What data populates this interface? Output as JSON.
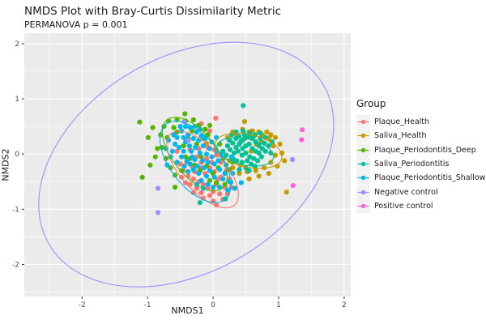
{
  "chart_data": {
    "type": "scatter",
    "title": "NMDS Plot with Bray-Curtis Dissimilarity Metric",
    "subtitle": "PERMANOVA p = 0.001",
    "xlabel": "NMDS1",
    "ylabel": "NMDS2",
    "xlim": [
      -2.88,
      2.1
    ],
    "ylim": [
      -2.58,
      2.19
    ],
    "x_ticks": [
      -2,
      -1,
      0,
      1,
      2
    ],
    "y_ticks": [
      -2,
      -1,
      0,
      1,
      2
    ],
    "x_minor_ticks": [
      -2.5,
      -1.5,
      -0.5,
      0.5,
      1.5
    ],
    "y_minor_ticks": [
      -2.5,
      -1.5,
      -0.5,
      0.5,
      1.5
    ],
    "grid": "on",
    "panel_background": "#EBEBEB",
    "gridline_color": "#FFFFFF",
    "tick_label_color": "#4D4D4D",
    "legend_title": "Group",
    "legend_position": "right",
    "legend_key_fill": "#F2F2F2",
    "series": [
      {
        "name": "Plaque_Health",
        "color": "#F8766D",
        "ellipse": {
          "cx": -0.16,
          "cy": -0.28,
          "rx": 0.73,
          "ry": 0.33,
          "angle": 48
        },
        "points": [
          [
            -0.45,
            -0.3
          ],
          [
            -0.38,
            -0.4
          ],
          [
            -0.3,
            -0.45
          ],
          [
            -0.22,
            -0.5
          ],
          [
            -0.15,
            -0.55
          ],
          [
            -0.08,
            -0.62
          ],
          [
            0.0,
            -0.68
          ],
          [
            0.1,
            -0.72
          ],
          [
            -0.25,
            -0.62
          ],
          [
            -0.35,
            -0.55
          ],
          [
            -0.18,
            -0.7
          ],
          [
            -0.05,
            -0.75
          ],
          [
            0.05,
            -0.55
          ],
          [
            0.12,
            -0.42
          ],
          [
            0.18,
            -0.6
          ],
          [
            0.22,
            -0.72
          ],
          [
            -0.12,
            -0.35
          ],
          [
            -0.2,
            -0.25
          ],
          [
            -0.28,
            -0.32
          ],
          [
            -0.05,
            -0.25
          ],
          [
            0.02,
            -0.32
          ],
          [
            0.08,
            -0.45
          ],
          [
            -0.4,
            -0.15
          ],
          [
            -0.32,
            -0.22
          ],
          [
            -0.48,
            -0.42
          ],
          [
            -0.42,
            -0.52
          ],
          [
            -0.3,
            -0.7
          ],
          [
            -0.15,
            -0.8
          ],
          [
            0.0,
            -0.85
          ],
          [
            0.15,
            -0.82
          ],
          [
            -0.5,
            -0.18
          ],
          [
            -0.25,
            -0.05
          ],
          [
            -0.18,
            -0.15
          ],
          [
            -0.1,
            -0.08
          ],
          [
            -0.02,
            -0.15
          ],
          [
            0.05,
            -0.02
          ],
          [
            0.12,
            -0.15
          ],
          [
            0.2,
            -0.3
          ],
          [
            0.25,
            -0.45
          ],
          [
            0.28,
            -0.6
          ],
          [
            -0.35,
            0.08
          ],
          [
            -0.22,
            0.1
          ],
          [
            -0.08,
            0.12
          ],
          [
            0.02,
            0.08
          ],
          [
            -0.55,
            0.05
          ],
          [
            -0.05,
            0.42
          ],
          [
            -0.18,
            0.55
          ],
          [
            0.05,
            -0.92
          ],
          [
            0.04,
            0.65
          ]
        ]
      },
      {
        "name": "Saliva_Health",
        "color": "#C49A00",
        "ellipse": {
          "cx": 0.54,
          "cy": 0.06,
          "rx": 0.52,
          "ry": 0.25,
          "angle": 13
        },
        "points": [
          [
            0.3,
            0.4
          ],
          [
            0.45,
            0.45
          ],
          [
            0.6,
            0.42
          ],
          [
            0.75,
            0.35
          ],
          [
            0.85,
            0.28
          ],
          [
            0.92,
            0.15
          ],
          [
            0.95,
            -0.02
          ],
          [
            0.88,
            -0.15
          ],
          [
            0.78,
            -0.25
          ],
          [
            0.65,
            -0.3
          ],
          [
            0.52,
            -0.32
          ],
          [
            0.4,
            -0.35
          ],
          [
            0.3,
            -0.25
          ],
          [
            0.25,
            -0.12
          ],
          [
            0.22,
            0.3
          ],
          [
            0.35,
            0.35
          ],
          [
            0.55,
            0.4
          ],
          [
            0.7,
            0.4
          ],
          [
            0.82,
            0.4
          ],
          [
            0.95,
            0.3
          ],
          [
            1.02,
            0.18
          ],
          [
            1.05,
            0.02
          ],
          [
            0.98,
            -0.22
          ],
          [
            0.85,
            -0.35
          ],
          [
            0.7,
            -0.4
          ],
          [
            0.55,
            -0.45
          ],
          [
            0.42,
            -0.2
          ],
          [
            0.48,
            0.28
          ],
          [
            0.62,
            0.32
          ],
          [
            0.58,
            0.05
          ],
          [
            0.66,
            0.18
          ],
          [
            0.74,
            0.22
          ],
          [
            0.88,
            0.35
          ],
          [
            1.09,
            -0.12
          ],
          [
            1.12,
            -0.69
          ],
          [
            0.48,
            0.59
          ],
          [
            -0.1,
            0.19
          ]
        ]
      },
      {
        "name": "Plaque_Periodontitis_Deep",
        "color": "#53B400",
        "ellipse": {
          "cx": -0.28,
          "cy": 0.0,
          "rx": 0.67,
          "ry": 0.33,
          "angle": 51
        },
        "points": [
          [
            -1.12,
            0.58
          ],
          [
            -0.99,
            0.3
          ],
          [
            -1.08,
            -0.42
          ],
          [
            -0.96,
            -0.2
          ],
          [
            -0.85,
            0.1
          ],
          [
            -0.8,
            0.35
          ],
          [
            -0.75,
            0.5
          ],
          [
            -0.68,
            0.6
          ],
          [
            -0.55,
            0.62
          ],
          [
            -0.42,
            0.6
          ],
          [
            -0.3,
            0.62
          ],
          [
            -0.6,
            0.48
          ],
          [
            -0.7,
            0.3
          ],
          [
            -0.78,
            0.12
          ],
          [
            -0.72,
            -0.08
          ],
          [
            -0.65,
            -0.25
          ],
          [
            -0.58,
            -0.38
          ],
          [
            -0.48,
            -0.3
          ],
          [
            -0.55,
            0.4
          ],
          [
            -0.45,
            0.15
          ],
          [
            -0.38,
            0.28
          ],
          [
            -0.32,
            0.42
          ],
          [
            -0.22,
            0.52
          ],
          [
            -0.12,
            0.45
          ],
          [
            -0.35,
            -0.08
          ],
          [
            -0.28,
            -0.2
          ],
          [
            -0.42,
            -0.05
          ],
          [
            -0.18,
            -0.05
          ],
          [
            -0.08,
            0.35
          ],
          [
            -0.05,
            0.52
          ],
          [
            -0.15,
            0.3
          ],
          [
            -0.25,
            0.18
          ],
          [
            -0.2,
            -0.3
          ],
          [
            -0.1,
            -0.22
          ],
          [
            0.0,
            -0.35
          ],
          [
            -0.05,
            -0.48
          ],
          [
            0.08,
            -0.25
          ],
          [
            0.15,
            -0.08
          ],
          [
            0.1,
            0.18
          ],
          [
            0.05,
            -0.52
          ],
          [
            0.18,
            -0.55
          ],
          [
            0.25,
            -0.28
          ],
          [
            -0.88,
            -0.05
          ],
          [
            -0.92,
            0.48
          ],
          [
            0.3,
            -0.15
          ],
          [
            -0.58,
            -0.6
          ],
          [
            -0.43,
            0.73
          ]
        ]
      },
      {
        "name": "Saliva_Periodontitis",
        "color": "#00C094",
        "ellipse": {
          "cx": 0.49,
          "cy": 0.04,
          "rx": 0.44,
          "ry": 0.2,
          "angle": 12
        },
        "points": [
          [
            0.3,
            0.2
          ],
          [
            0.35,
            0.28
          ],
          [
            0.4,
            0.32
          ],
          [
            0.45,
            0.25
          ],
          [
            0.5,
            0.3
          ],
          [
            0.55,
            0.32
          ],
          [
            0.6,
            0.28
          ],
          [
            0.65,
            0.22
          ],
          [
            0.7,
            0.15
          ],
          [
            0.72,
            0.28
          ],
          [
            0.35,
            0.12
          ],
          [
            0.4,
            0.18
          ],
          [
            0.45,
            0.1
          ],
          [
            0.5,
            0.15
          ],
          [
            0.55,
            0.18
          ],
          [
            0.6,
            0.1
          ],
          [
            0.65,
            0.05
          ],
          [
            0.7,
            0.02
          ],
          [
            0.75,
            0.1
          ],
          [
            0.78,
            0.2
          ],
          [
            0.32,
            0.02
          ],
          [
            0.38,
            0.05
          ],
          [
            0.44,
            -0.02
          ],
          [
            0.5,
            0.02
          ],
          [
            0.56,
            -0.05
          ],
          [
            0.62,
            -0.08
          ],
          [
            0.68,
            -0.12
          ],
          [
            0.74,
            -0.05
          ],
          [
            0.8,
            0.05
          ],
          [
            0.42,
            0.22
          ],
          [
            0.36,
            -0.12
          ],
          [
            0.44,
            -0.15
          ],
          [
            0.52,
            -0.12
          ],
          [
            0.58,
            -0.18
          ],
          [
            0.64,
            -0.22
          ],
          [
            0.48,
            0.35
          ],
          [
            0.56,
            0.38
          ],
          [
            0.64,
            0.35
          ],
          [
            0.3,
            -0.08
          ],
          [
            0.26,
            0.08
          ],
          [
            0.25,
            0.25
          ],
          [
            0.85,
            0.15
          ],
          [
            0.88,
            0.02
          ],
          [
            0.35,
            0.4
          ],
          [
            0.28,
            0.35
          ],
          [
            0.72,
            0.38
          ],
          [
            0.8,
            0.3
          ],
          [
            0.5,
            -0.25
          ],
          [
            0.4,
            -0.28
          ],
          [
            0.22,
            0.15
          ],
          [
            0.2,
            -0.02
          ],
          [
            0.9,
            0.22
          ],
          [
            0.46,
            0.42
          ],
          [
            0.15,
            0.05
          ],
          [
            0.55,
            -0.3
          ],
          [
            0.46,
            0.88
          ],
          [
            0.27,
            -0.51
          ],
          [
            0.19,
            -0.81
          ],
          [
            -0.2,
            -0.88
          ]
        ]
      },
      {
        "name": "Plaque_Periodontitis_Shallow",
        "color": "#00B6EB",
        "ellipse": {
          "cx": -0.27,
          "cy": -0.14,
          "rx": 0.73,
          "ry": 0.38,
          "angle": 52
        },
        "points": [
          [
            -0.55,
            0.3
          ],
          [
            -0.48,
            0.42
          ],
          [
            -0.42,
            0.22
          ],
          [
            -0.38,
            0.35
          ],
          [
            -0.52,
            0.12
          ],
          [
            -0.45,
            0.05
          ],
          [
            -0.36,
            0.15
          ],
          [
            -0.3,
            0.28
          ],
          [
            -0.25,
            0.4
          ],
          [
            -0.33,
            0.05
          ],
          [
            -0.48,
            -0.05
          ],
          [
            -0.4,
            -0.12
          ],
          [
            -0.32,
            -0.05
          ],
          [
            -0.27,
            0.12
          ],
          [
            -0.22,
            0.25
          ],
          [
            -0.18,
            0.33
          ],
          [
            -0.58,
            0.18
          ],
          [
            -0.62,
            0.05
          ],
          [
            -0.55,
            -0.15
          ],
          [
            -0.44,
            -0.22
          ],
          [
            -0.35,
            -0.18
          ],
          [
            -0.28,
            -0.1
          ],
          [
            -0.2,
            0.02
          ],
          [
            -0.15,
            0.15
          ],
          [
            -0.12,
            0.28
          ],
          [
            -0.24,
            -0.22
          ],
          [
            -0.16,
            -0.12
          ],
          [
            -0.1,
            0.0
          ],
          [
            -0.05,
            0.1
          ],
          [
            -0.02,
            0.22
          ],
          [
            -0.38,
            -0.32
          ],
          [
            -0.3,
            -0.28
          ],
          [
            -0.22,
            -0.35
          ],
          [
            -0.14,
            -0.25
          ],
          [
            -0.08,
            -0.15
          ],
          [
            -0.02,
            -0.05
          ],
          [
            0.05,
            0.05
          ],
          [
            0.02,
            -0.18
          ],
          [
            -0.1,
            -0.4
          ],
          [
            -0.18,
            -0.48
          ],
          [
            -0.05,
            -0.3
          ],
          [
            0.08,
            -0.12
          ],
          [
            0.12,
            -0.02
          ],
          [
            0.1,
            -0.28
          ],
          [
            0.02,
            -0.42
          ],
          [
            -0.08,
            -0.55
          ],
          [
            -0.25,
            -0.55
          ],
          [
            -0.15,
            -0.62
          ],
          [
            0.0,
            -0.6
          ],
          [
            0.15,
            -0.45
          ],
          [
            0.2,
            -0.2
          ],
          [
            0.18,
            -0.35
          ],
          [
            0.25,
            -0.5
          ],
          [
            0.1,
            -0.6
          ],
          [
            -0.35,
            0.48
          ],
          [
            -0.2,
            0.45
          ],
          [
            -0.68,
            0.25
          ],
          [
            -0.72,
            0.1
          ],
          [
            -0.65,
            -0.05
          ],
          [
            -0.5,
            0.5
          ],
          [
            0.3,
            -0.35
          ],
          [
            0.22,
            -0.65
          ],
          [
            -0.45,
            0.3
          ],
          [
            -0.6,
            0.35
          ],
          [
            0.05,
            0.3
          ],
          [
            -0.7,
            -0.2
          ],
          [
            -0.28,
            0.5
          ],
          [
            -0.42,
            0.5
          ],
          [
            0.33,
            -0.62
          ],
          [
            0.28,
            -0.05
          ],
          [
            0.43,
            -0.52
          ]
        ]
      },
      {
        "name": "Negative control",
        "color": "#A58AFF",
        "ellipse": {
          "cx": -0.41,
          "cy": -0.19,
          "rx": 2.42,
          "ry": 1.64,
          "angle": -30
        },
        "points": [
          [
            -0.44,
            0.59
          ],
          [
            -0.38,
            0.25
          ],
          [
            -0.84,
            -0.62
          ],
          [
            -0.84,
            -1.06
          ],
          [
            1.21,
            -0.1
          ]
        ]
      },
      {
        "name": "Positive control",
        "color": "#FB61D7",
        "ellipse": null,
        "points": [
          [
            1.36,
            0.44
          ],
          [
            1.35,
            0.26
          ],
          [
            1.22,
            -0.57
          ]
        ]
      }
    ]
  }
}
